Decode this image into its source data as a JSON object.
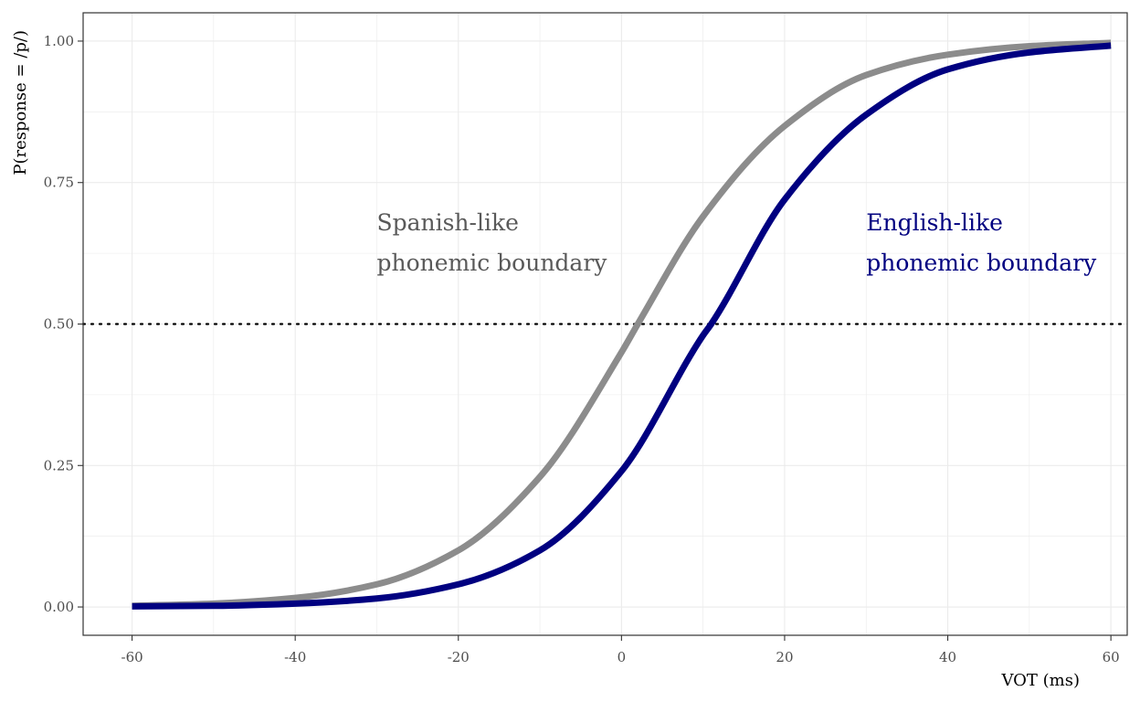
{
  "chart_data": {
    "type": "line",
    "title": "",
    "xlabel": "VOT (ms)",
    "ylabel": "P(response = /p/)",
    "xlim": [
      -66,
      62
    ],
    "ylim": [
      -0.05,
      1.05
    ],
    "x_ticks": [
      -60,
      -40,
      -20,
      0,
      20,
      40,
      60
    ],
    "x_tick_labels": [
      "-60",
      "-40",
      "-20",
      "0",
      "20",
      "40",
      "60"
    ],
    "y_ticks": [
      0,
      0.25,
      0.5,
      0.75,
      1
    ],
    "y_tick_labels": [
      "0.00",
      "0.25",
      "0.50",
      "0.75",
      "1.00"
    ],
    "grid": true,
    "legend": "none",
    "reference_line": {
      "y": 0.5,
      "style": "dotted",
      "color": "#000000"
    },
    "series": [
      {
        "color": "#8c8c8c",
        "x": [
          -60,
          -50,
          -40,
          -30,
          -20,
          -10,
          0,
          2,
          10,
          20,
          30,
          40,
          50,
          60
        ],
        "values": [
          0.002,
          0.006,
          0.016,
          0.04,
          0.1,
          0.23,
          0.45,
          0.5,
          0.69,
          0.85,
          0.94,
          0.976,
          0.991,
          0.997
        ]
      },
      {
        "color": "#000080",
        "x": [
          -60,
          -50,
          -40,
          -30,
          -20,
          -10,
          0,
          10,
          11,
          20,
          30,
          40,
          50,
          60
        ],
        "values": [
          0.001,
          0.002,
          0.006,
          0.015,
          0.04,
          0.1,
          0.24,
          0.48,
          0.5,
          0.72,
          0.87,
          0.95,
          0.98,
          0.992
        ]
      }
    ],
    "annotations": [
      {
        "lines": [
          "Spanish-like",
          "phonemic boundary"
        ],
        "x": -30,
        "y": 0.68,
        "color": "#595959"
      },
      {
        "lines": [
          "English-like",
          "phonemic boundary"
        ],
        "x": 30,
        "y": 0.68,
        "color": "#000080"
      }
    ]
  }
}
